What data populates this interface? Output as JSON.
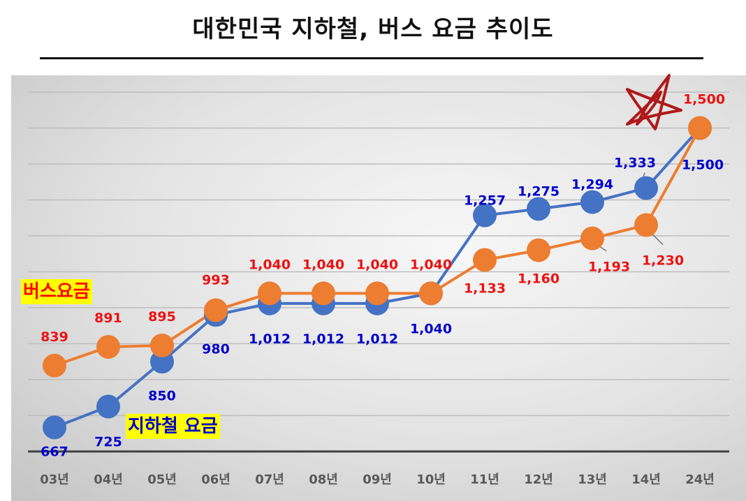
{
  "title": "대한민국 지하철, 버스 요금 추이도",
  "chart_data": {
    "type": "line",
    "title": "대한민국 지하철, 버스 요금 추이도",
    "categories": [
      "03년",
      "04년",
      "05년",
      "06년",
      "07년",
      "08년",
      "09년",
      "10년",
      "11년",
      "12년",
      "13년",
      "14년",
      "24년"
    ],
    "series": [
      {
        "name": "지하철 요금",
        "color": "#4472c4",
        "label_color": "#0000cc",
        "values": [
          667,
          725,
          850,
          980,
          1012,
          1012,
          1012,
          1040,
          1257,
          1275,
          1294,
          1333,
          1500
        ],
        "labels": [
          "667",
          "725",
          "850",
          "980",
          "1,012",
          "1,012",
          "1,012",
          "1,040",
          "1,257",
          "1,275",
          "1,294",
          "1,333",
          "1,500"
        ]
      },
      {
        "name": "버스요금",
        "color": "#ed7d31",
        "label_color": "#ee1111",
        "values": [
          839,
          891,
          895,
          993,
          1040,
          1040,
          1040,
          1040,
          1133,
          1160,
          1193,
          1230,
          1500
        ],
        "labels": [
          "839",
          "891",
          "895",
          "993",
          "1,040",
          "1,040",
          "1,040",
          "1,040",
          "1,133",
          "1,160",
          "1,193",
          "1,230",
          "1,500"
        ]
      }
    ],
    "ylim": [
      600,
      1600
    ],
    "grid": true,
    "annotation": "star-mark"
  }
}
